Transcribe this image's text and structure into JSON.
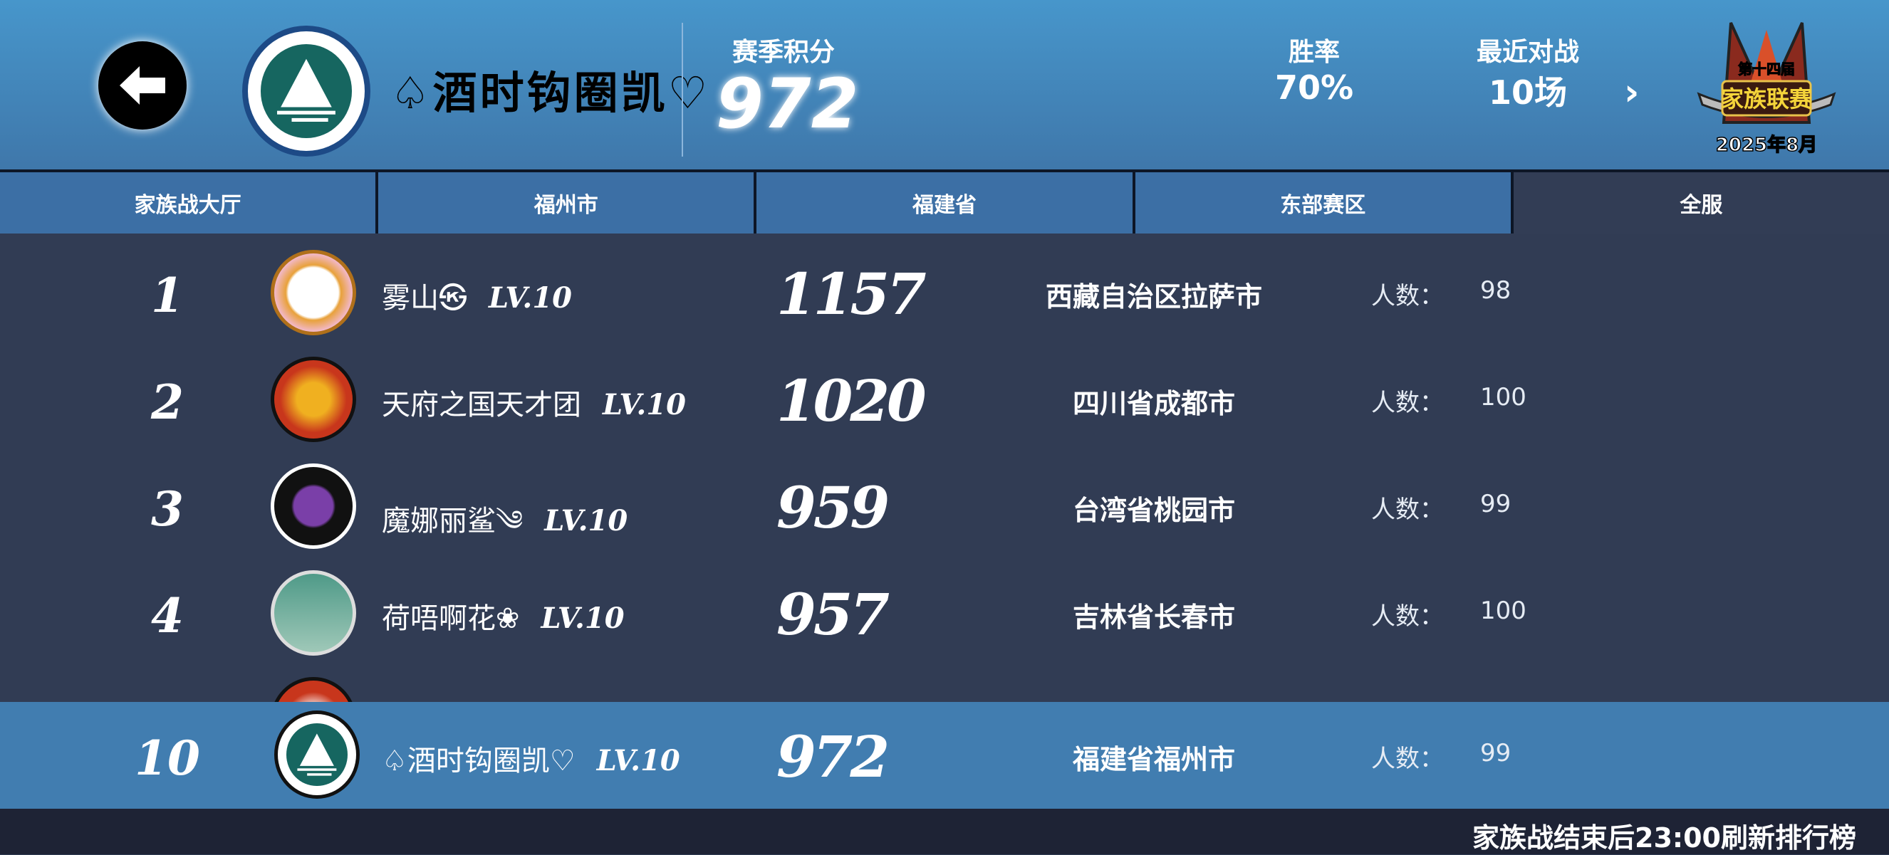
{
  "header": {
    "back_icon": "arrow-left-icon",
    "player_name": "♤酒时钩圈凯♡",
    "season_points_label": "赛季积分",
    "season_points": "972",
    "win_rate_label": "胜率",
    "win_rate": "70%",
    "recent_label": "最近对战",
    "recent_value": "10场",
    "badge": {
      "line1": "第十四届",
      "line2": "家族联赛",
      "date": "2025年8月"
    }
  },
  "tabs": [
    {
      "label": "家族战大厅",
      "active": false
    },
    {
      "label": "福州市",
      "active": false
    },
    {
      "label": "福建省",
      "active": false
    },
    {
      "label": "东部赛区",
      "active": false
    },
    {
      "label": "全服",
      "active": true
    }
  ],
  "count_label": "人数：",
  "rows": [
    {
      "rank": "1",
      "name": "雾山㉿",
      "level": "LV.10",
      "score": "1157",
      "region": "西藏自治区拉萨市",
      "count": "98",
      "avatar_color": "#e8a13a"
    },
    {
      "rank": "2",
      "name": "天府之国天才团",
      "level": "LV.10",
      "score": "1020",
      "region": "四川省成都市",
      "count": "100",
      "avatar_color": "#c8361c"
    },
    {
      "rank": "3",
      "name": "魔娜丽鲨༄",
      "level": "LV.10",
      "score": "959",
      "region": "台湾省桃园市",
      "count": "99",
      "avatar_color": "#7a3fa8"
    },
    {
      "rank": "4",
      "name": "荷唔啊花❀",
      "level": "LV.10",
      "score": "957",
      "region": "吉林省长春市",
      "count": "100",
      "avatar_color": "#4f9a88"
    }
  ],
  "my_row": {
    "rank": "10",
    "name": "♤酒时钩圈凯♡",
    "level": "LV.10",
    "score": "972",
    "region": "福建省福州市",
    "count": "99"
  },
  "footer_note": "家族战结束后23:00刷新排行榜",
  "colors": {
    "header": "#4593c8",
    "tab": "#3c6fa5",
    "active_tab": "#323d55",
    "list_bg": "#313c54",
    "my_row": "#417db0",
    "footer": "#1e2335"
  }
}
